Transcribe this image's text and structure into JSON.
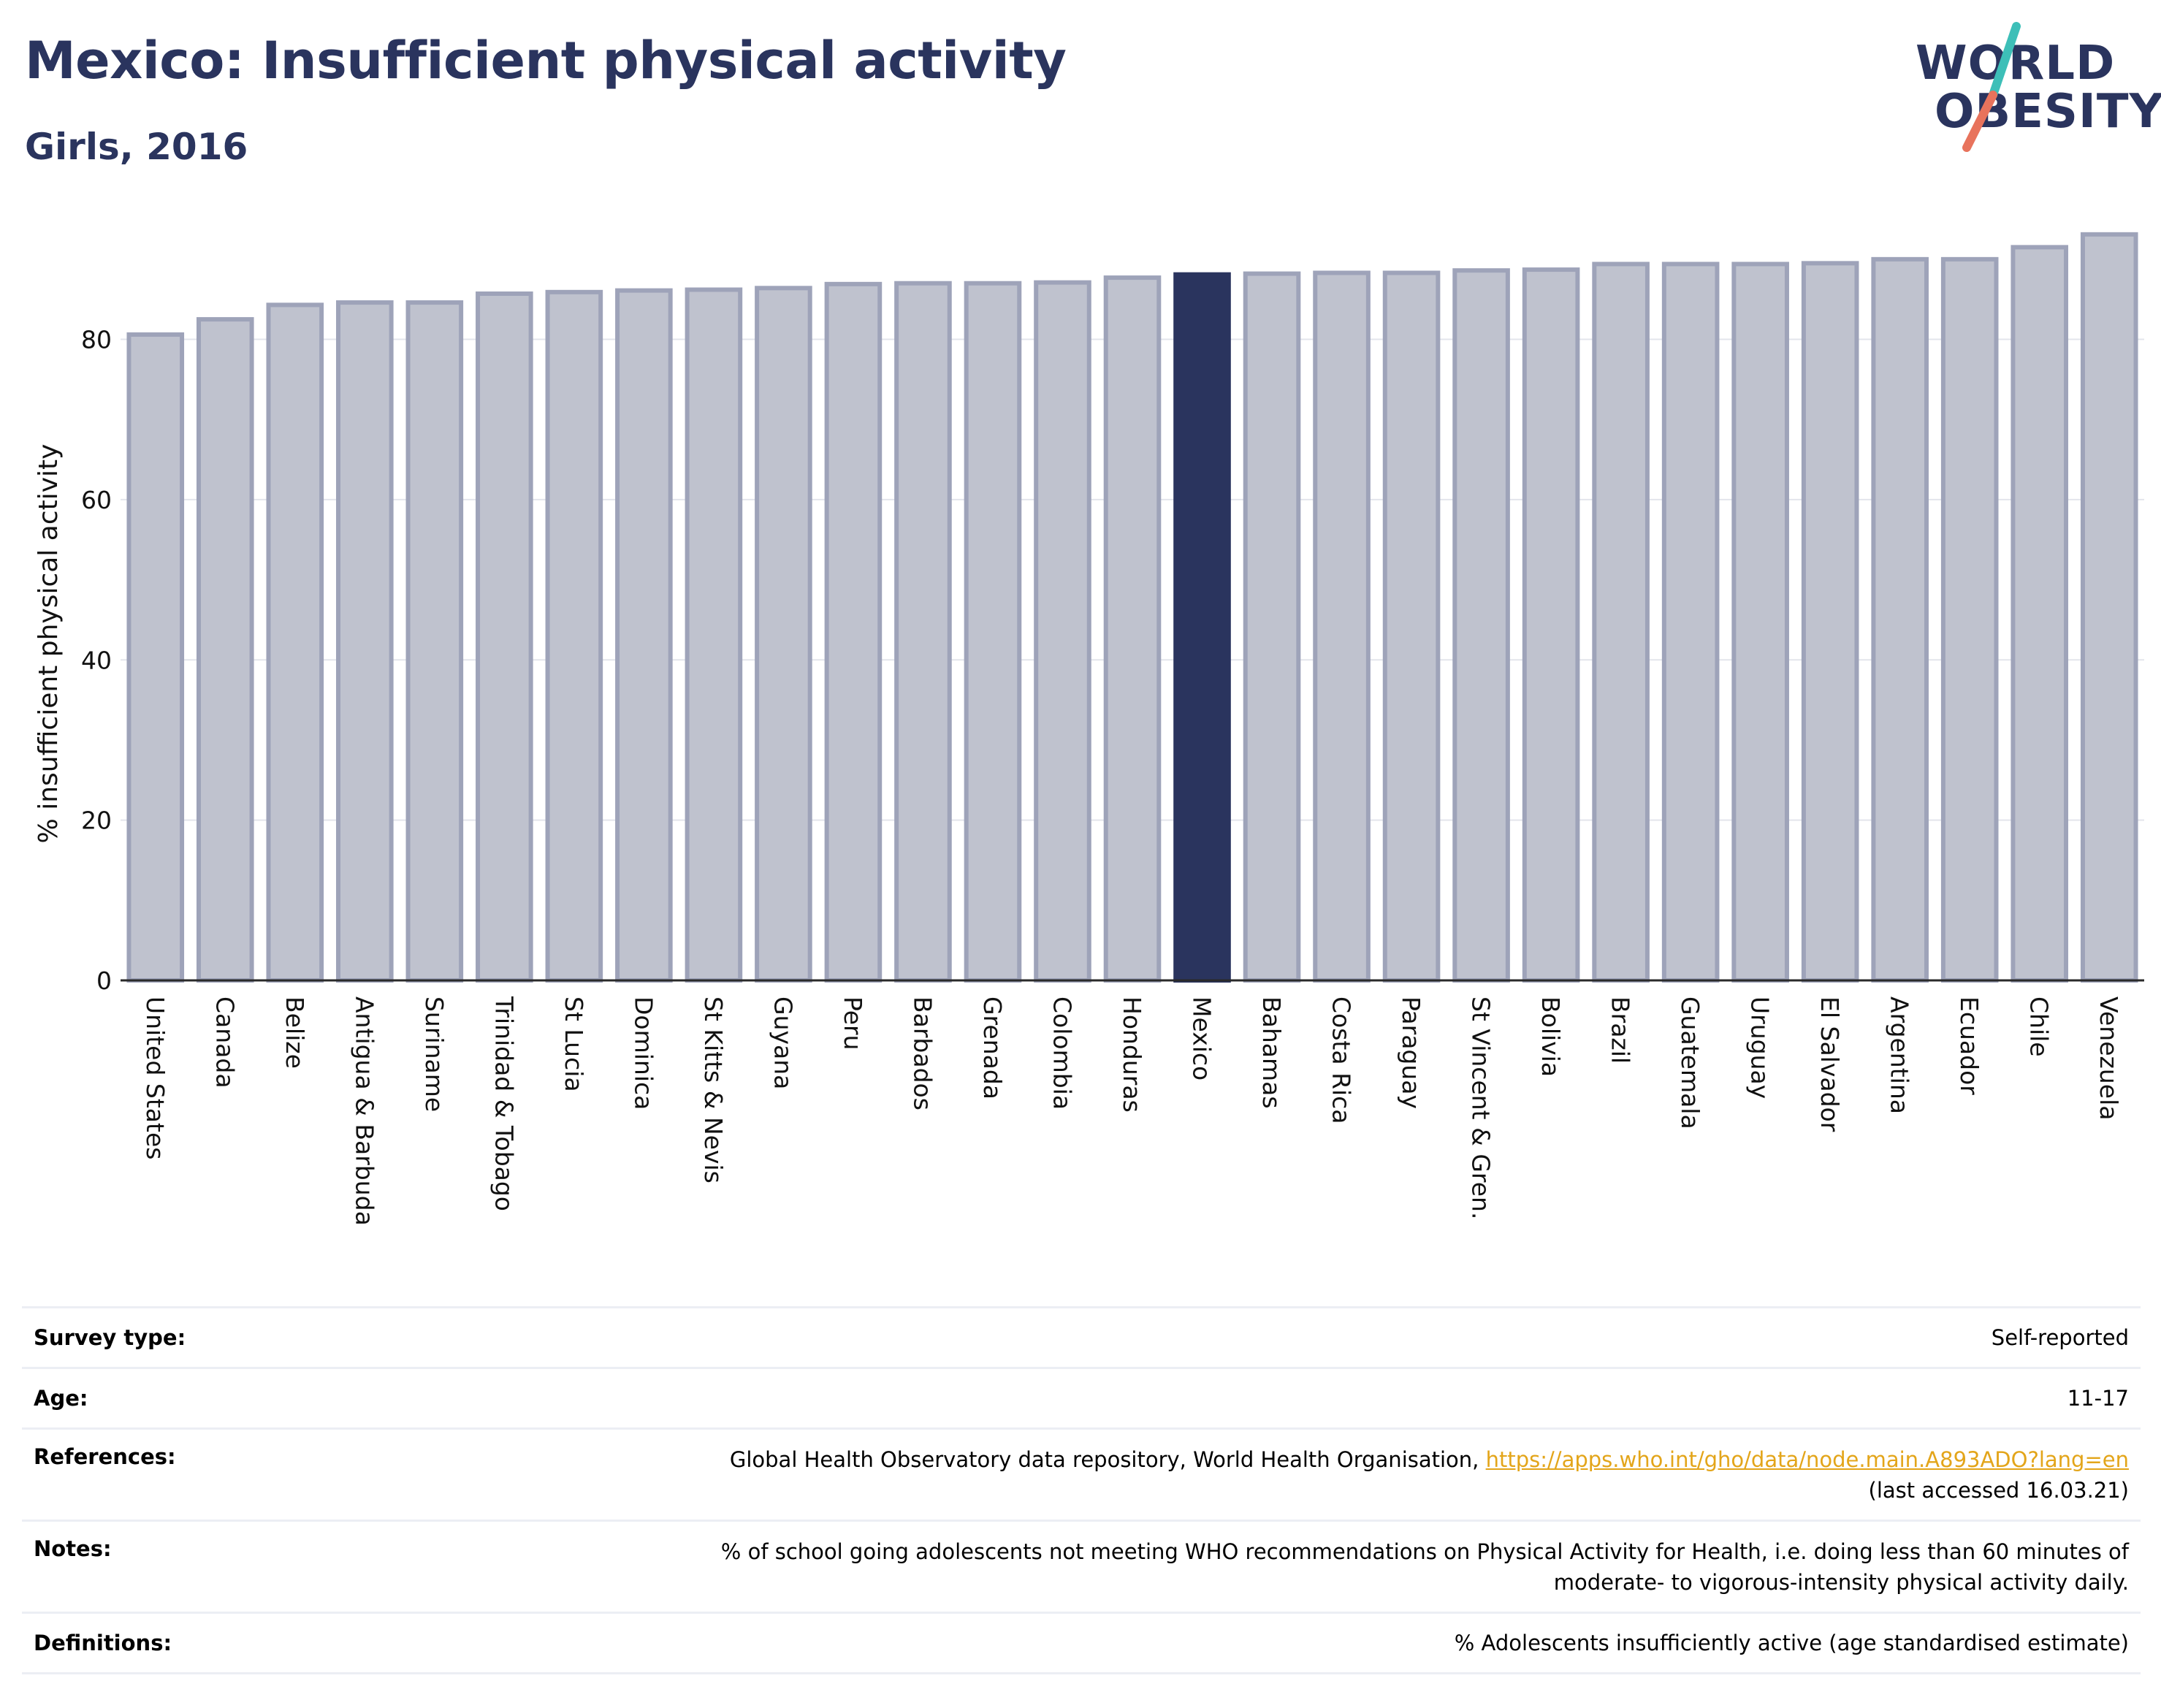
{
  "header": {
    "title": "Mexico: Insufficient physical activity",
    "subtitle": "Girls, 2016"
  },
  "logo": {
    "line1": "WORLD",
    "line2": "OBESITY",
    "accent_colors": [
      "#3dbfb8",
      "#e8735c"
    ],
    "brand_color": "#2a345e"
  },
  "chart_data": {
    "type": "bar",
    "ylabel": "% insufficient physical activity",
    "xlabel": "",
    "ylim": [
      0,
      95
    ],
    "yticks": [
      0,
      20,
      40,
      60,
      80
    ],
    "grid": true,
    "highlight": "Mexico",
    "colors": {
      "default": "#bfc2ce",
      "default_border": "#9ea3b9",
      "highlight": "#2a345e"
    },
    "categories": [
      "United States",
      "Canada",
      "Belize",
      "Antigua & Barbuda",
      "Suriname",
      "Trinidad & Tobago",
      "St Lucia",
      "Dominica",
      "St Kitts & Nevis",
      "Guyana",
      "Peru",
      "Barbados",
      "Grenada",
      "Colombia",
      "Honduras",
      "Mexico",
      "Bahamas",
      "Costa Rica",
      "Paraguay",
      "St Vincent & Gren.",
      "Bolivia",
      "Brazil",
      "Guatemala",
      "Uruguay",
      "El Salvador",
      "Argentina",
      "Ecuador",
      "Chile",
      "Venezuela"
    ],
    "values": [
      80.6,
      82.5,
      84.3,
      84.6,
      84.6,
      85.7,
      85.9,
      86.1,
      86.2,
      86.4,
      86.9,
      87.0,
      87.0,
      87.1,
      87.7,
      88.1,
      88.2,
      88.3,
      88.3,
      88.6,
      88.7,
      89.4,
      89.4,
      89.4,
      89.5,
      90.0,
      90.0,
      91.5,
      93.1
    ]
  },
  "info": {
    "survey_type_label": "Survey type:",
    "survey_type_value": "Self-reported",
    "age_label": "Age:",
    "age_value": "11-17",
    "references_label": "References:",
    "references_text": "Global Health Observatory data repository, World Health Organisation, ",
    "references_link": "https://apps.who.int/gho/data/node.main.A893ADO?lang=en",
    "references_accessed": "(last accessed 16.03.21)",
    "notes_label": "Notes:",
    "notes_line1": "% of school going adolescents not meeting WHO recommendations on Physical Activity for Health, i.e. doing less than 60 minutes of",
    "notes_line2": "moderate- to vigorous-intensity physical activity daily.",
    "definitions_label": "Definitions:",
    "definitions_value": "% Adolescents insufficiently active (age standardised estimate)"
  }
}
